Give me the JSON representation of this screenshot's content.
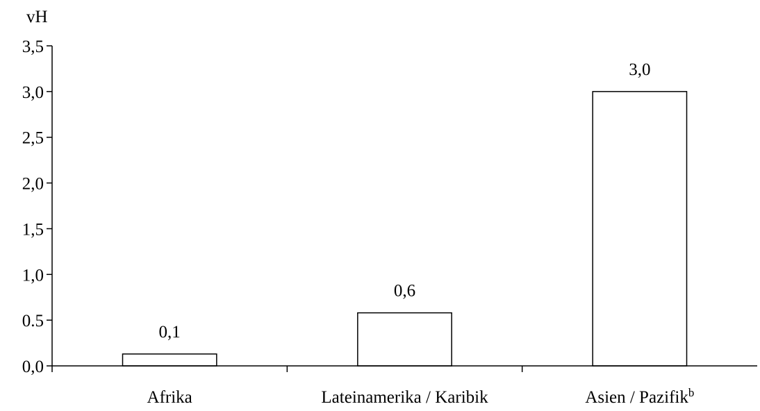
{
  "chart_data": {
    "type": "bar",
    "ylabel": "vH",
    "categories": [
      "Afrika",
      "Lateinamerika / Karibik",
      "Asien / Pazifik"
    ],
    "category_superscripts": [
      "",
      "",
      "b"
    ],
    "values": [
      0.13,
      0.58,
      3.0
    ],
    "value_labels": [
      "0,1",
      "0,6",
      "3,0"
    ],
    "ylim": [
      0,
      3.5
    ],
    "yticks": [
      0,
      0.5,
      1.0,
      1.5,
      2.0,
      2.5,
      3.0,
      3.5
    ],
    "ytick_labels": [
      "0,0",
      "0.5",
      "1,0",
      "1,5",
      "2,0",
      "2,5",
      "3,0",
      "3,5"
    ],
    "grid": false,
    "bar_fill": "#ffffff",
    "bar_stroke": "#000000"
  }
}
